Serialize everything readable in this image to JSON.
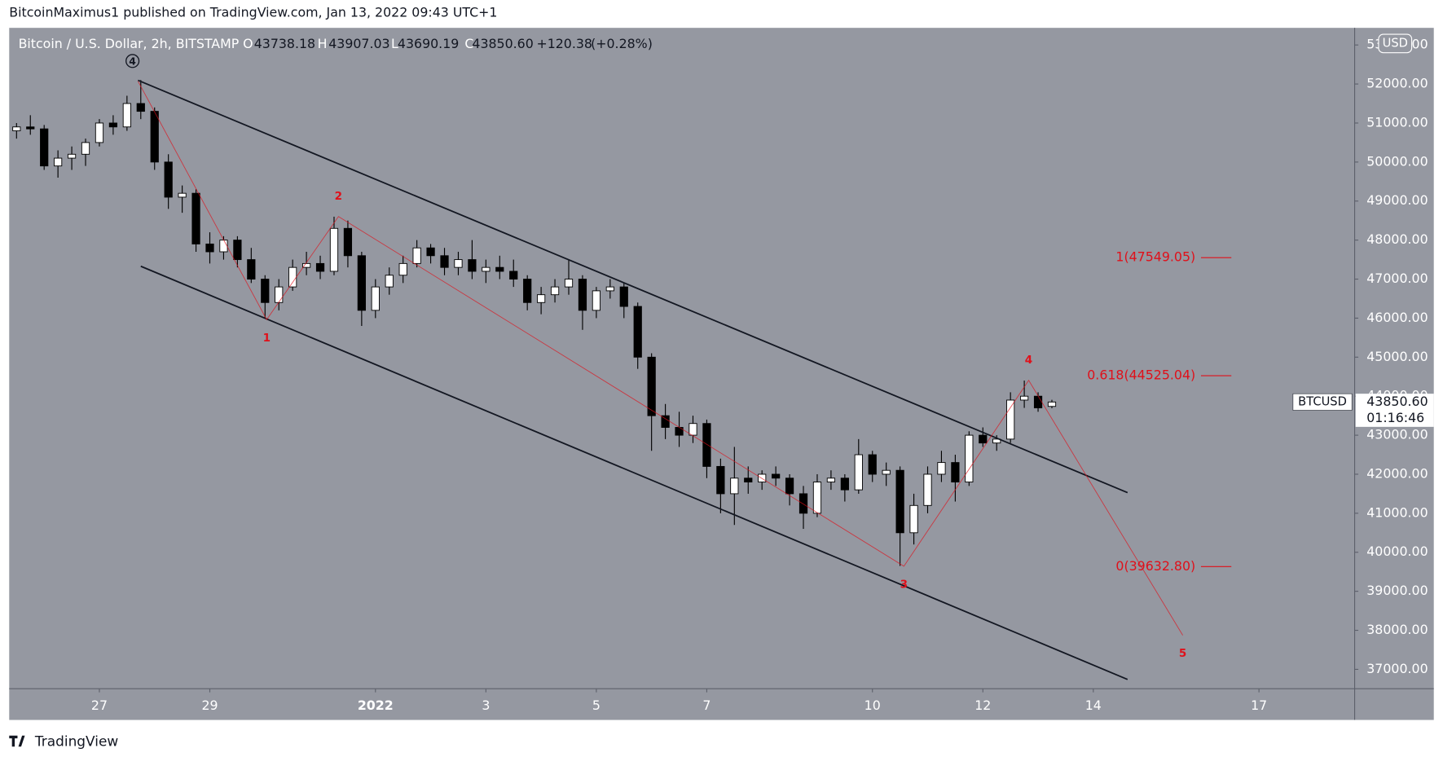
{
  "chart_data": {
    "type": "candlestick",
    "publisher_line": "BitcoinMaximus1 published on TradingView.com, Jan 13, 2022 09:43 UTC+1",
    "title": "Bitcoin / U.S. Dollar, 2h, BITSTAMP",
    "ohlc_legend": [
      {
        "key": "O",
        "text": "43738.18"
      },
      {
        "key": "H",
        "text": "43907.03"
      },
      {
        "key": "L",
        "text": "43690.19"
      },
      {
        "key": "C",
        "text": "43850.60"
      }
    ],
    "change": "+120.38",
    "change_pct": "(+0.28%)",
    "currency": "USD",
    "symbol": "BTCUSD",
    "last_price": {
      "value": 43850.6,
      "label": "43850.60"
    },
    "countdown": "01:16:46",
    "footer": "TradingView",
    "up_color": "#ffffff",
    "down_color": "#000000",
    "wick_color": "#000000",
    "background": "#9598a1",
    "xlim": [
      -1.633,
      22.733
    ],
    "ylim": [
      36505,
      53439
    ],
    "xticks": [
      {
        "value": 0,
        "label": "27"
      },
      {
        "value": 2,
        "label": "29"
      },
      {
        "value": 5,
        "label": "2022"
      },
      {
        "value": 7,
        "label": "3"
      },
      {
        "value": 9,
        "label": "5"
      },
      {
        "value": 11,
        "label": "7"
      },
      {
        "value": 14,
        "label": "10"
      },
      {
        "value": 16,
        "label": "12"
      },
      {
        "value": 18,
        "label": "14"
      },
      {
        "value": 21,
        "label": "17"
      }
    ],
    "yticks": [
      {
        "value": 37000,
        "label": "37000.00"
      },
      {
        "value": 38000,
        "label": "38000.00"
      },
      {
        "value": 39000,
        "label": "39000.00"
      },
      {
        "value": 40000,
        "label": "40000.00"
      },
      {
        "value": 41000,
        "label": "41000.00"
      },
      {
        "value": 42000,
        "label": "42000.00"
      },
      {
        "value": 43000,
        "label": "43000.00"
      },
      {
        "value": 44000,
        "label": "44000.00"
      },
      {
        "value": 45000,
        "label": "45000.00"
      },
      {
        "value": 46000,
        "label": "46000.00"
      },
      {
        "value": 47000,
        "label": "47000.00"
      },
      {
        "value": 48000,
        "label": "48000.00"
      },
      {
        "value": 49000,
        "label": "49000.00"
      },
      {
        "value": 50000,
        "label": "50000.00"
      },
      {
        "value": 51000,
        "label": "51000.00"
      },
      {
        "value": 52000,
        "label": "52000.00"
      },
      {
        "value": 53000,
        "label": "53000.00"
      }
    ],
    "x": [
      -1.5,
      -1.25,
      -1,
      -0.75,
      -0.5,
      -0.25,
      0,
      0.25,
      0.5,
      0.75,
      1,
      1.25,
      1.5,
      1.75,
      2,
      2.25,
      2.5,
      2.75,
      3,
      3.25,
      3.5,
      3.75,
      4,
      4.25,
      4.5,
      4.75,
      5,
      5.25,
      5.5,
      5.75,
      6,
      6.25,
      6.5,
      6.75,
      7,
      7.25,
      7.5,
      7.75,
      8,
      8.25,
      8.5,
      8.75,
      9,
      9.25,
      9.5,
      9.75,
      10,
      10.25,
      10.5,
      10.75,
      11,
      11.25,
      11.5,
      11.75,
      12,
      12.25,
      12.5,
      12.75,
      13,
      13.25,
      13.5,
      13.75,
      14,
      14.25,
      14.5,
      14.75,
      15,
      15.25,
      15.5,
      15.75,
      16,
      16.25,
      16.5,
      16.75,
      17,
      17.25
    ],
    "ohlc": [
      [
        50800,
        51000,
        50600,
        50900
      ],
      [
        50900,
        51200,
        50700,
        50850
      ],
      [
        50850,
        50950,
        49800,
        49900
      ],
      [
        49900,
        50300,
        49600,
        50100
      ],
      [
        50100,
        50400,
        49800,
        50200
      ],
      [
        50200,
        50600,
        49900,
        50500
      ],
      [
        50500,
        51100,
        50400,
        51000
      ],
      [
        51000,
        51200,
        50700,
        50900
      ],
      [
        50900,
        51700,
        50800,
        51500
      ],
      [
        51500,
        52100,
        51100,
        51300
      ],
      [
        51300,
        51400,
        49800,
        50000
      ],
      [
        50000,
        50200,
        48800,
        49100
      ],
      [
        49100,
        49400,
        48700,
        49200
      ],
      [
        49200,
        49300,
        47700,
        47900
      ],
      [
        47900,
        48200,
        47400,
        47700
      ],
      [
        47700,
        48100,
        47500,
        48000
      ],
      [
        48000,
        48100,
        47300,
        47500
      ],
      [
        47500,
        47800,
        46900,
        47000
      ],
      [
        47000,
        47100,
        46000,
        46400
      ],
      [
        46400,
        47000,
        46200,
        46800
      ],
      [
        46800,
        47500,
        46700,
        47300
      ],
      [
        47300,
        47700,
        47100,
        47400
      ],
      [
        47400,
        47600,
        47000,
        47200
      ],
      [
        47200,
        48600,
        47100,
        48300
      ],
      [
        48300,
        48500,
        47300,
        47600
      ],
      [
        47600,
        47700,
        45800,
        46200
      ],
      [
        46200,
        47000,
        46000,
        46800
      ],
      [
        46800,
        47300,
        46600,
        47100
      ],
      [
        47100,
        47600,
        46900,
        47400
      ],
      [
        47400,
        48000,
        47300,
        47800
      ],
      [
        47800,
        47900,
        47400,
        47600
      ],
      [
        47600,
        47800,
        47100,
        47300
      ],
      [
        47300,
        47700,
        47100,
        47500
      ],
      [
        47500,
        48000,
        47000,
        47200
      ],
      [
        47200,
        47500,
        46900,
        47300
      ],
      [
        47300,
        47600,
        47000,
        47200
      ],
      [
        47200,
        47500,
        46800,
        47000
      ],
      [
        47000,
        47100,
        46200,
        46400
      ],
      [
        46400,
        46800,
        46100,
        46600
      ],
      [
        46600,
        47000,
        46400,
        46800
      ],
      [
        46800,
        47500,
        46600,
        47000
      ],
      [
        47000,
        47100,
        45700,
        46200
      ],
      [
        46200,
        46800,
        46000,
        46700
      ],
      [
        46700,
        47000,
        46500,
        46800
      ],
      [
        46800,
        46900,
        46000,
        46300
      ],
      [
        46300,
        46400,
        44700,
        45000
      ],
      [
        45000,
        45100,
        42600,
        43500
      ],
      [
        43500,
        43800,
        42900,
        43200
      ],
      [
        43200,
        43600,
        42700,
        43000
      ],
      [
        43000,
        43500,
        42800,
        43300
      ],
      [
        43300,
        43400,
        41900,
        42200
      ],
      [
        42200,
        42400,
        41000,
        41500
      ],
      [
        41500,
        42700,
        40700,
        41900
      ],
      [
        41900,
        42200,
        41500,
        41800
      ],
      [
        41800,
        42100,
        41600,
        42000
      ],
      [
        42000,
        42200,
        41700,
        41900
      ],
      [
        41900,
        42000,
        41200,
        41500
      ],
      [
        41500,
        41700,
        40600,
        41000
      ],
      [
        41000,
        42000,
        40900,
        41800
      ],
      [
        41800,
        42100,
        41600,
        41900
      ],
      [
        41900,
        42000,
        41300,
        41600
      ],
      [
        41600,
        42900,
        41500,
        42500
      ],
      [
        42500,
        42600,
        41800,
        42000
      ],
      [
        42000,
        42300,
        41700,
        42100
      ],
      [
        42100,
        42200,
        39650,
        40500
      ],
      [
        40500,
        41500,
        40200,
        41200
      ],
      [
        41200,
        42200,
        41000,
        42000
      ],
      [
        42000,
        42600,
        41800,
        42300
      ],
      [
        42300,
        42500,
        41300,
        41800
      ],
      [
        41800,
        43100,
        41700,
        43000
      ],
      [
        43000,
        43200,
        42700,
        42800
      ],
      [
        42800,
        43000,
        42600,
        42900
      ],
      [
        42900,
        44100,
        42800,
        43900
      ],
      [
        43900,
        44400,
        43700,
        44000
      ],
      [
        44000,
        44100,
        43600,
        43700
      ],
      [
        43738.18,
        43907.03,
        43690.19,
        43850.6
      ]
    ],
    "channels": {
      "color": "#131722",
      "lines": [
        {
          "x": [
            0.7,
            18.62
          ],
          "y": [
            52094,
            41528
          ]
        },
        {
          "x": [
            0.75,
            18.62
          ],
          "y": [
            47330,
            36741
          ]
        }
      ]
    },
    "wave": {
      "color": "#e0101a",
      "start_color": "#131722",
      "x": [
        0.7,
        3.03,
        4.33,
        14.57,
        16.83,
        19.62
      ],
      "y": [
        52071,
        45962,
        48604,
        39642,
        44406,
        37873
      ],
      "labels": [
        "4",
        "1",
        "2",
        "3",
        "4",
        "5"
      ]
    },
    "fib": {
      "color": "#e0101a",
      "x": [
        19.95,
        20.5
      ],
      "levels": [
        {
          "label": "1(47549.05)",
          "value": 47549.05
        },
        {
          "label": "0.618(44525.04)",
          "value": 44525.04
        },
        {
          "label": "0(39632.80)",
          "value": 39632.8
        }
      ]
    }
  }
}
